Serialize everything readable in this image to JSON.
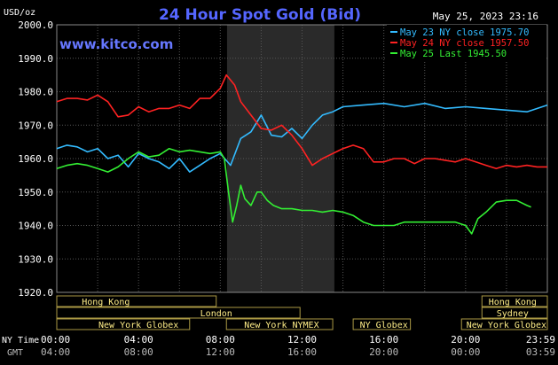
{
  "chart_data": {
    "type": "line",
    "title": "24 Hour Spot Gold (Bid)",
    "unit_label": "USD/oz",
    "timestamp": "May 25, 2023 23:16",
    "website": "www.kitco.com",
    "ylim": [
      1920,
      2000
    ],
    "y_ticks": [
      "2000.0",
      "1990.0",
      "1980.0",
      "1970.0",
      "1960.0",
      "1950.0",
      "1940.0",
      "1930.0",
      "1920.0"
    ],
    "y_tick_values": [
      2000,
      1990,
      1980,
      1970,
      1960,
      1950,
      1940,
      1930,
      1920
    ],
    "x_ticks": [
      {
        "h": 0,
        "ny": "00:00",
        "gmt": "04:00"
      },
      {
        "h": 4,
        "ny": "04:00",
        "gmt": "08:00"
      },
      {
        "h": 8,
        "ny": "08:00",
        "gmt": "12:00"
      },
      {
        "h": 12,
        "ny": "12:00",
        "gmt": "16:00"
      },
      {
        "h": 16,
        "ny": "16:00",
        "gmt": "20:00"
      },
      {
        "h": 20,
        "ny": "20:00",
        "gmt": "00:00"
      },
      {
        "h": 24,
        "ny": "23:59",
        "gmt": "03:59"
      }
    ],
    "x_axis_row_labels": {
      "ny": "NY Time",
      "gmt": "GMT"
    },
    "highlight_hours": [
      8.33,
      13.58
    ],
    "grid": true,
    "legend_position": "top-right",
    "legend": [
      {
        "label": "May 23 NY close 1975.70",
        "color": "#33bbff"
      },
      {
        "label": "May 24 NY close 1957.50",
        "color": "#ff2222"
      },
      {
        "label": "May 25 Last 1945.50",
        "color": "#33ee33"
      }
    ],
    "series": [
      {
        "name": "May 23",
        "color": "#33bbff",
        "x": [
          0,
          0.5,
          1,
          1.5,
          2,
          2.5,
          3,
          3.5,
          4,
          4.5,
          5,
          5.5,
          6,
          6.5,
          7,
          7.5,
          8,
          8.5,
          9,
          9.5,
          10,
          10.5,
          11,
          11.5,
          12,
          12.5,
          13,
          13.5,
          14,
          15,
          16,
          17,
          18,
          19,
          20,
          21,
          22,
          23,
          24
        ],
        "y": [
          1963,
          1964,
          1963.5,
          1962,
          1963,
          1960,
          1961,
          1957.5,
          1961.5,
          1960,
          1959,
          1957,
          1960,
          1956,
          1958,
          1960,
          1961.5,
          1958,
          1966,
          1968,
          1973,
          1967,
          1966.5,
          1969,
          1966,
          1970,
          1973,
          1974,
          1975.5,
          1976,
          1976.5,
          1975.5,
          1976.5,
          1975,
          1975.5,
          1975,
          1974.5,
          1974,
          1976
        ]
      },
      {
        "name": "May 24",
        "color": "#ff2222",
        "x": [
          0,
          0.5,
          1,
          1.5,
          2,
          2.5,
          3,
          3.5,
          4,
          4.5,
          5,
          5.5,
          6,
          6.5,
          7,
          7.5,
          8,
          8.3,
          8.7,
          9,
          9.5,
          10,
          10.5,
          11,
          11.5,
          12,
          12.5,
          13,
          13.5,
          14,
          14.5,
          15,
          15.5,
          16,
          16.5,
          17,
          17.5,
          18,
          18.5,
          19,
          19.5,
          20,
          20.5,
          21,
          21.5,
          22,
          22.5,
          23,
          23.5,
          24
        ],
        "y": [
          1977,
          1978,
          1978,
          1977.5,
          1979,
          1977,
          1972.5,
          1973,
          1975.5,
          1974,
          1975,
          1975,
          1976,
          1975,
          1978,
          1978,
          1981,
          1985,
          1982,
          1977,
          1973,
          1969,
          1968.5,
          1970,
          1967,
          1963,
          1958,
          1960,
          1961.5,
          1963,
          1964,
          1963,
          1959,
          1959,
          1960,
          1960,
          1958.5,
          1960,
          1960,
          1959.5,
          1959,
          1960,
          1959,
          1958,
          1957,
          1958,
          1957.5,
          1958,
          1957.5,
          1957.5
        ]
      },
      {
        "name": "May 25",
        "color": "#33ee33",
        "x": [
          0,
          0.5,
          1,
          1.5,
          2,
          2.5,
          3,
          3.5,
          4,
          4.5,
          5,
          5.5,
          6,
          6.5,
          7,
          7.5,
          8,
          8.2,
          8.4,
          8.6,
          8.8,
          9,
          9.2,
          9.5,
          9.8,
          10,
          10.3,
          10.6,
          11,
          11.5,
          12,
          12.5,
          13,
          13.5,
          14,
          14.5,
          15,
          15.5,
          16,
          16.5,
          17,
          17.5,
          18,
          18.5,
          19,
          19.5,
          20,
          20.3,
          20.6,
          21,
          21.5,
          22,
          22.5,
          23,
          23.2
        ],
        "y": [
          1957,
          1958,
          1958.5,
          1958,
          1957,
          1956,
          1957.5,
          1960,
          1962,
          1960.5,
          1961,
          1963,
          1962,
          1962.5,
          1962,
          1961.5,
          1962,
          1960,
          1950,
          1941,
          1946,
          1952,
          1948,
          1946,
          1950,
          1950,
          1947.5,
          1946,
          1945,
          1945,
          1944.5,
          1944.5,
          1944,
          1944.5,
          1944,
          1943,
          1941,
          1940,
          1940,
          1940,
          1941,
          1941,
          1941,
          1941,
          1941,
          1941,
          1940,
          1937.5,
          1942,
          1944,
          1947,
          1947.5,
          1947.5,
          1946,
          1945.5
        ]
      }
    ],
    "sessions": [
      {
        "label": "Hong Kong",
        "row": 0,
        "segments": [
          [
            0,
            7.8
          ],
          [
            20.8,
            24
          ]
        ]
      },
      {
        "label": "London",
        "row": 1,
        "segments": [
          [
            0,
            11.9
          ]
        ]
      },
      {
        "label": "Sydney",
        "row": 1,
        "segments": [
          [
            20.8,
            24
          ]
        ]
      },
      {
        "label": "New York Globex",
        "row": 2,
        "segments": [
          [
            0,
            6.5
          ],
          [
            19.8,
            24
          ]
        ]
      },
      {
        "label": "New York NYMEX",
        "row": 2,
        "segments": [
          [
            8.3,
            13.5
          ]
        ]
      },
      {
        "label": "NY Globex",
        "row": 2,
        "segments": [
          [
            14.5,
            17.3
          ]
        ]
      }
    ],
    "session_label_positions": [
      {
        "label": "Hong Kong",
        "h": 2.4,
        "row": 0
      },
      {
        "label": "Hong Kong",
        "h": 22.3,
        "row": 0
      },
      {
        "label": "London",
        "h": 7.8,
        "row": 1
      },
      {
        "label": "Sydney",
        "h": 22.3,
        "row": 1
      },
      {
        "label": "New York Globex",
        "h": 4.0,
        "row": 2
      },
      {
        "label": "New York NYMEX",
        "h": 11.0,
        "row": 2
      },
      {
        "label": "NY Globex",
        "h": 16.0,
        "row": 2
      },
      {
        "label": "New York Globex",
        "h": 22.0,
        "row": 2
      }
    ]
  }
}
